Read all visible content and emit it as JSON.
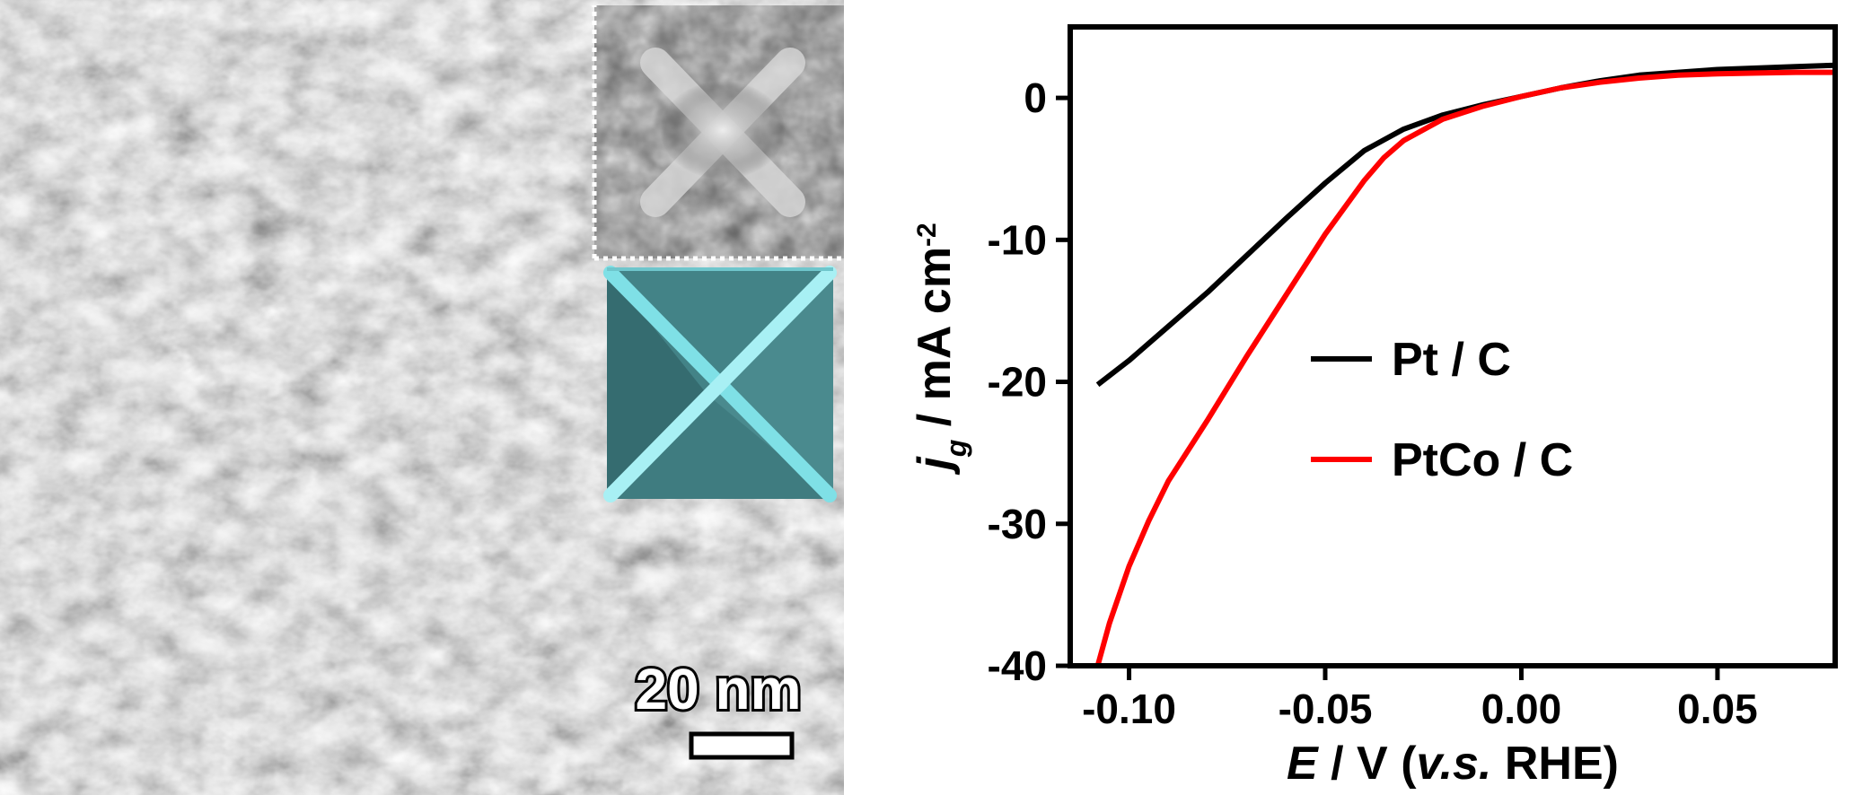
{
  "micrograph": {
    "scale_bar_label": "20 nm",
    "model_color": "#3f7c80",
    "model_edge_color": "#7fe0e6"
  },
  "chart_data": {
    "type": "line",
    "xlabel_main": "E",
    "xlabel_mid": " / V (",
    "xlabel_italic": "v.s.",
    "xlabel_end": " RHE)",
    "ylabel_main": "j",
    "ylabel_sub": "g",
    "ylabel_unit": " / mA cm",
    "ylabel_sup": "-2",
    "xlim": [
      -0.115,
      0.08
    ],
    "ylim": [
      -40,
      5
    ],
    "xticks": [
      -0.1,
      -0.05,
      0.0,
      0.05
    ],
    "xtick_labels": [
      "-0.10",
      "-0.05",
      "0.00",
      "0.05"
    ],
    "yticks": [
      0,
      -10,
      -20,
      -30,
      -40
    ],
    "ytick_labels": [
      "0",
      "-10",
      "-20",
      "-30",
      "-40"
    ],
    "legend_position": "center-right",
    "series": [
      {
        "name": "Pt / C",
        "color": "#000000",
        "points": [
          [
            -0.108,
            -20.2
          ],
          [
            -0.1,
            -18.5
          ],
          [
            -0.09,
            -16.1
          ],
          [
            -0.08,
            -13.7
          ],
          [
            -0.07,
            -11.1
          ],
          [
            -0.06,
            -8.5
          ],
          [
            -0.05,
            -6.0
          ],
          [
            -0.04,
            -3.7
          ],
          [
            -0.03,
            -2.2
          ],
          [
            -0.02,
            -1.2
          ],
          [
            -0.01,
            -0.5
          ],
          [
            0.0,
            0.1
          ],
          [
            0.01,
            0.7
          ],
          [
            0.02,
            1.2
          ],
          [
            0.03,
            1.6
          ],
          [
            0.04,
            1.8
          ],
          [
            0.05,
            2.0
          ],
          [
            0.06,
            2.1
          ],
          [
            0.07,
            2.2
          ],
          [
            0.08,
            2.3
          ]
        ]
      },
      {
        "name": "PtCo / C",
        "color": "#ff0000",
        "points": [
          [
            -0.108,
            -40.0
          ],
          [
            -0.105,
            -37.0
          ],
          [
            -0.1,
            -33.0
          ],
          [
            -0.095,
            -29.8
          ],
          [
            -0.09,
            -27.0
          ],
          [
            -0.08,
            -22.7
          ],
          [
            -0.07,
            -18.2
          ],
          [
            -0.06,
            -13.9
          ],
          [
            -0.05,
            -9.6
          ],
          [
            -0.04,
            -5.8
          ],
          [
            -0.035,
            -4.2
          ],
          [
            -0.03,
            -3.0
          ],
          [
            -0.02,
            -1.5
          ],
          [
            -0.01,
            -0.6
          ],
          [
            0.0,
            0.1
          ],
          [
            0.01,
            0.7
          ],
          [
            0.02,
            1.1
          ],
          [
            0.03,
            1.4
          ],
          [
            0.04,
            1.6
          ],
          [
            0.05,
            1.7
          ],
          [
            0.06,
            1.75
          ],
          [
            0.07,
            1.8
          ],
          [
            0.08,
            1.8
          ]
        ]
      }
    ]
  }
}
